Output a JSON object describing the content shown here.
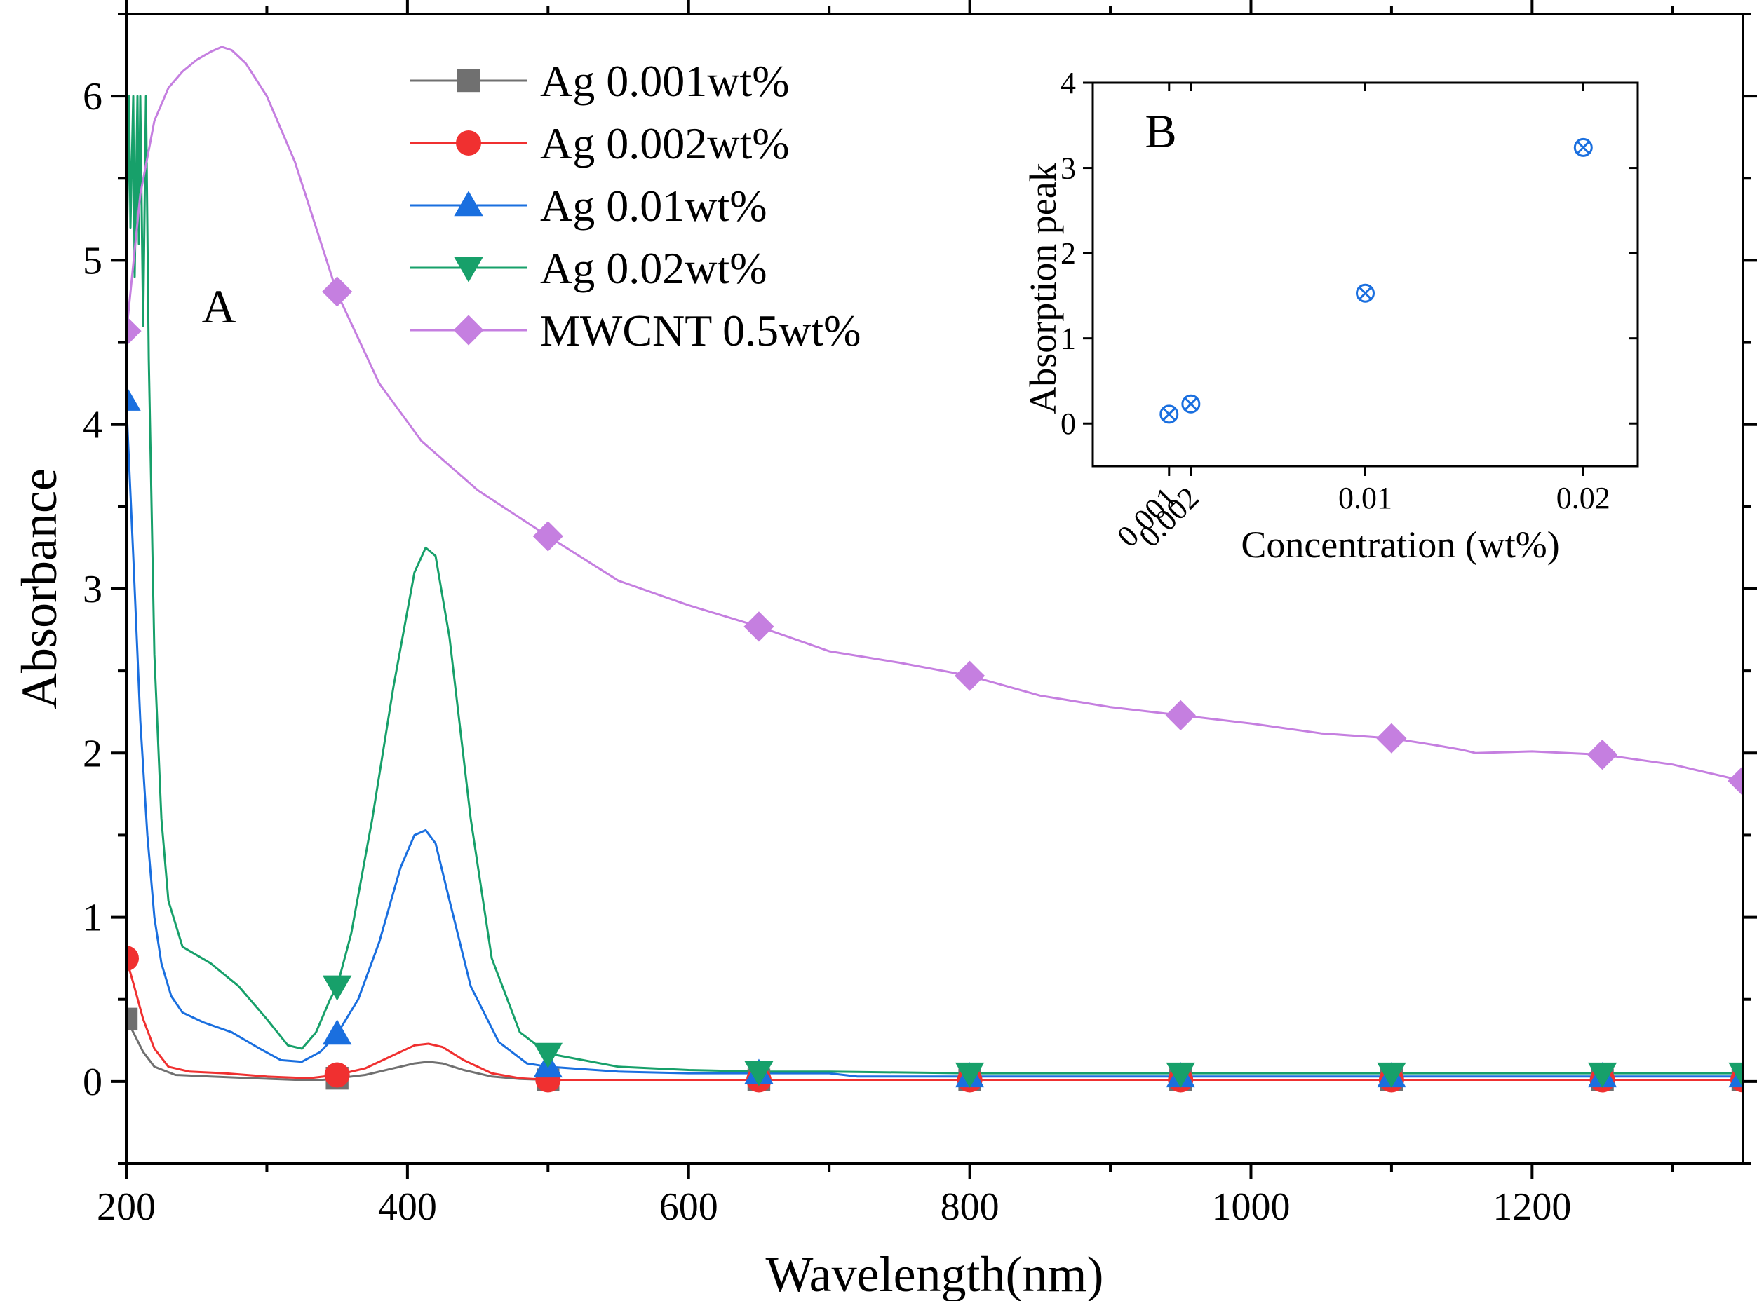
{
  "chart_data": [
    {
      "type": "line",
      "panel_label": "A",
      "title": "",
      "xlabel": "Wavelength(nm)",
      "ylabel": "Absorbance",
      "xlim": [
        200,
        1350
      ],
      "ylim": [
        -0.5,
        6.5
      ],
      "xticks": [
        200,
        400,
        600,
        800,
        1000,
        1200
      ],
      "yticks": [
        0,
        1,
        2,
        3,
        4,
        5,
        6
      ],
      "xtick_labels": [
        "200",
        "400",
        "600",
        "800",
        "1000",
        "1200"
      ],
      "ytick_labels": [
        "0",
        "1",
        "2",
        "3",
        "4",
        "5",
        "6"
      ],
      "legend_position": "top-center",
      "grid": false,
      "series": [
        {
          "name": "Ag 0.001wt%",
          "color": "#707070",
          "marker": "square",
          "x": [
            200,
            205,
            212,
            220,
            235,
            260,
            290,
            320,
            340,
            350,
            370,
            390,
            405,
            415,
            425,
            440,
            460,
            480,
            500,
            550,
            600,
            650,
            700,
            800,
            900,
            950,
            1000,
            1100,
            1200,
            1250,
            1300,
            1350
          ],
          "y": [
            0.38,
            0.3,
            0.18,
            0.09,
            0.04,
            0.03,
            0.02,
            0.01,
            0.01,
            0.02,
            0.04,
            0.08,
            0.11,
            0.12,
            0.11,
            0.07,
            0.03,
            0.015,
            0.01,
            0.01,
            0.01,
            0.01,
            0.01,
            0.01,
            0.01,
            0.01,
            0.01,
            0.01,
            0.01,
            0.01,
            0.01,
            0.01
          ],
          "marker_x": [
            200,
            350,
            500,
            650,
            800,
            950,
            1100,
            1250,
            1350
          ],
          "marker_y": [
            0.38,
            0.02,
            0.01,
            0.01,
            0.01,
            0.01,
            0.01,
            0.01,
            0.01
          ]
        },
        {
          "name": "Ag 0.002wt%",
          "color": "#f03030",
          "marker": "circle",
          "x": [
            200,
            205,
            212,
            220,
            230,
            245,
            270,
            300,
            330,
            350,
            370,
            390,
            405,
            415,
            425,
            440,
            460,
            480,
            500,
            550,
            600,
            650,
            700,
            800,
            900,
            950,
            1000,
            1100,
            1200,
            1250,
            1300,
            1350
          ],
          "y": [
            0.75,
            0.6,
            0.38,
            0.2,
            0.09,
            0.06,
            0.05,
            0.03,
            0.02,
            0.04,
            0.08,
            0.16,
            0.22,
            0.23,
            0.21,
            0.13,
            0.05,
            0.02,
            0.01,
            0.01,
            0.01,
            0.01,
            0.01,
            0.01,
            0.01,
            0.01,
            0.01,
            0.01,
            0.01,
            0.01,
            0.01,
            0.01
          ],
          "marker_x": [
            200,
            350,
            500,
            650,
            800,
            950,
            1100,
            1250,
            1350
          ],
          "marker_y": [
            0.75,
            0.04,
            0.01,
            0.01,
            0.01,
            0.01,
            0.01,
            0.01,
            0.01
          ]
        },
        {
          "name": "Ag 0.01wt%",
          "color": "#1a6fdf",
          "marker": "triangle-up",
          "x": [
            200,
            205,
            210,
            215,
            220,
            225,
            232,
            240,
            255,
            275,
            295,
            310,
            325,
            338,
            350,
            365,
            380,
            395,
            405,
            413,
            420,
            430,
            445,
            465,
            485,
            500,
            550,
            600,
            650,
            700,
            720,
            800,
            900,
            950,
            1000,
            1100,
            1200,
            1250,
            1300,
            1350
          ],
          "y": [
            4.15,
            3.2,
            2.2,
            1.5,
            1.0,
            0.72,
            0.52,
            0.42,
            0.36,
            0.3,
            0.2,
            0.13,
            0.12,
            0.18,
            0.29,
            0.5,
            0.85,
            1.3,
            1.5,
            1.53,
            1.45,
            1.1,
            0.58,
            0.24,
            0.11,
            0.09,
            0.06,
            0.05,
            0.05,
            0.05,
            0.03,
            0.03,
            0.03,
            0.03,
            0.03,
            0.03,
            0.03,
            0.03,
            0.03,
            0.03
          ],
          "marker_x": [
            200,
            350,
            500,
            650,
            800,
            950,
            1100,
            1250,
            1350
          ],
          "marker_y": [
            4.15,
            0.29,
            0.09,
            0.05,
            0.03,
            0.03,
            0.03,
            0.03,
            0.03
          ]
        },
        {
          "name": "Ag 0.02wt%",
          "color": "#17a06a",
          "marker": "triangle-down",
          "x": [
            200,
            202,
            203,
            205,
            206,
            208,
            209,
            210,
            212,
            214,
            216,
            218,
            220,
            225,
            230,
            240,
            260,
            280,
            300,
            315,
            325,
            335,
            345,
            350,
            360,
            375,
            390,
            405,
            413,
            420,
            430,
            445,
            460,
            480,
            500,
            550,
            600,
            650,
            700,
            800,
            900,
            950,
            1000,
            1100,
            1200,
            1250,
            1300,
            1350
          ],
          "y": [
            4.8,
            6.0,
            5.2,
            6.0,
            4.9,
            6.0,
            5.1,
            6.0,
            4.6,
            6.0,
            4.4,
            3.5,
            2.6,
            1.6,
            1.1,
            0.82,
            0.72,
            0.58,
            0.38,
            0.22,
            0.2,
            0.3,
            0.5,
            0.58,
            0.9,
            1.6,
            2.4,
            3.1,
            3.25,
            3.2,
            2.7,
            1.6,
            0.75,
            0.3,
            0.17,
            0.09,
            0.07,
            0.06,
            0.06,
            0.05,
            0.05,
            0.05,
            0.05,
            0.05,
            0.05,
            0.05,
            0.05,
            0.05
          ],
          "marker_x": [
            350,
            500,
            650,
            800,
            950,
            1100,
            1250,
            1350
          ],
          "marker_y": [
            0.58,
            0.17,
            0.06,
            0.05,
            0.05,
            0.05,
            0.05,
            0.05
          ]
        },
        {
          "name": "MWCNT 0.5wt%",
          "color": "#c57fe0",
          "marker": "diamond",
          "x": [
            200,
            210,
            220,
            230,
            240,
            250,
            260,
            268,
            275,
            285,
            300,
            320,
            350,
            380,
            410,
            450,
            500,
            550,
            600,
            650,
            700,
            750,
            800,
            850,
            900,
            950,
            1000,
            1050,
            1100,
            1130,
            1150,
            1160,
            1200,
            1250,
            1300,
            1350
          ],
          "y": [
            4.55,
            5.4,
            5.85,
            6.05,
            6.15,
            6.22,
            6.27,
            6.3,
            6.28,
            6.2,
            6.0,
            5.6,
            4.8,
            4.25,
            3.9,
            3.6,
            3.32,
            3.05,
            2.9,
            2.77,
            2.62,
            2.55,
            2.47,
            2.35,
            2.28,
            2.23,
            2.18,
            2.12,
            2.09,
            2.05,
            2.02,
            2.0,
            2.01,
            1.99,
            1.93,
            1.83
          ],
          "marker_x": [
            200,
            350,
            500,
            650,
            800,
            950,
            1100,
            1250,
            1350
          ],
          "marker_y": [
            4.57,
            4.81,
            3.32,
            2.77,
            2.47,
            2.23,
            2.09,
            1.99,
            1.83
          ]
        }
      ]
    },
    {
      "type": "scatter",
      "panel_label": "B",
      "title": "",
      "xlabel": "Concentration (wt%)",
      "ylabel": "Absorption peak",
      "xlim": [
        -0.0025,
        0.0225
      ],
      "ylim": [
        -0.5,
        4
      ],
      "xticks": [
        0.001,
        0.002,
        0.01,
        0.02
      ],
      "xtick_labels": [
        "0.001",
        "0.002",
        "0.01",
        "0.02"
      ],
      "yticks": [
        0,
        1,
        2,
        3,
        4
      ],
      "ytick_labels": [
        "0",
        "1",
        "2",
        "3",
        "4"
      ],
      "grid": false,
      "series": [
        {
          "name": "Absorption peak",
          "color": "#1a6fdf",
          "marker": "circled-x",
          "x": [
            0.001,
            0.002,
            0.01,
            0.02
          ],
          "y": [
            0.11,
            0.23,
            1.53,
            3.24
          ]
        }
      ]
    }
  ]
}
